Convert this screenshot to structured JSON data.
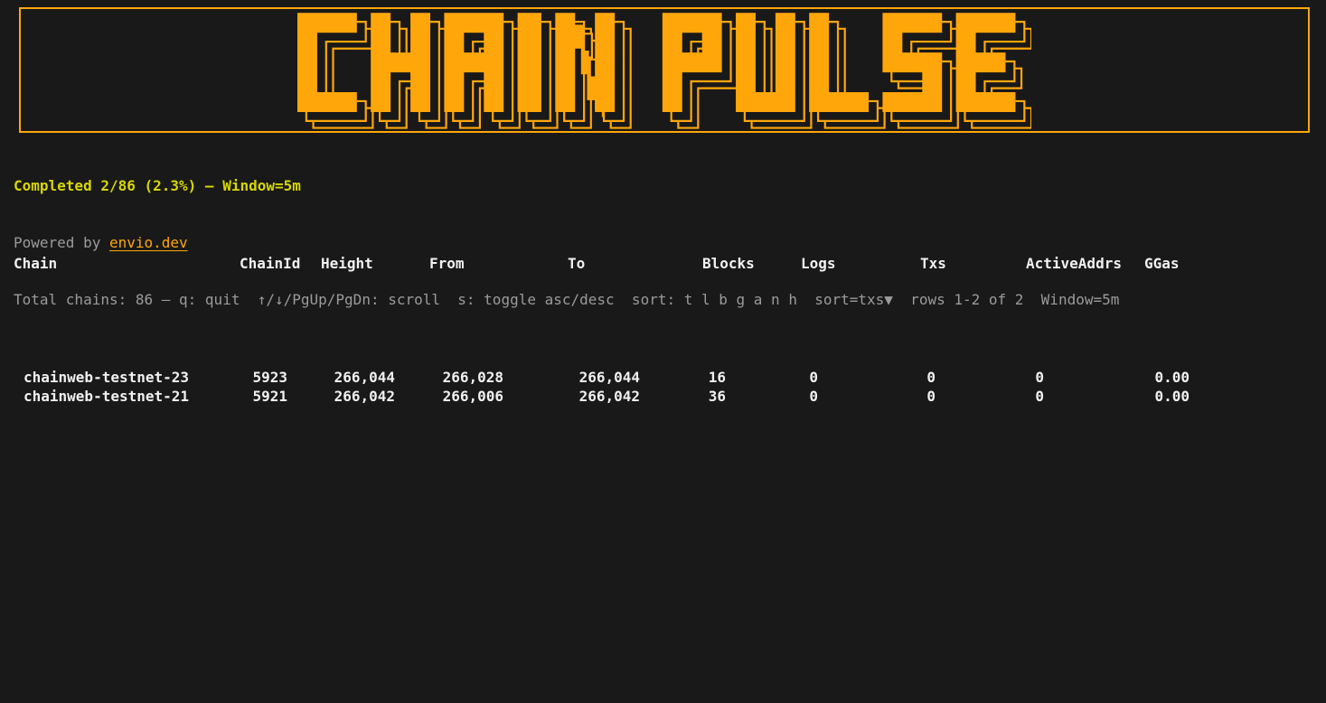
{
  "colors": {
    "background": "#191919",
    "accent_orange": "#ffa70a",
    "status_yellow": "#d7d700",
    "help_gray": "#9b9b9b",
    "table_white": "#f1f1f1"
  },
  "title": {
    "text": "CHAIN PULSE"
  },
  "status": {
    "completed_line": "Completed 2/86 (2.3%) — Window=5m",
    "powered_prefix": "Powered by ",
    "powered_link": "envio.dev",
    "help_line": "Total chains: 86 — q: quit  ↑/↓/PgUp/PgDn: scroll  s: toggle asc/desc  sort: t l b g a n h  sort=txs▼  rows 1-2 of 2  Window=5m"
  },
  "table": {
    "columns": [
      "Chain",
      "ChainId",
      "Height",
      "From",
      "To",
      "Blocks",
      "Logs",
      "Txs",
      "ActiveAddrs",
      "GGas"
    ],
    "rows": [
      [
        "chainweb-testnet-23",
        "5923",
        "266,044",
        "266,028",
        "266,044",
        "16",
        "0",
        "0",
        "0",
        "0.00"
      ],
      [
        "chainweb-testnet-21",
        "5921",
        "266,042",
        "266,006",
        "266,042",
        "36",
        "0",
        "0",
        "0",
        "0.00"
      ]
    ]
  }
}
